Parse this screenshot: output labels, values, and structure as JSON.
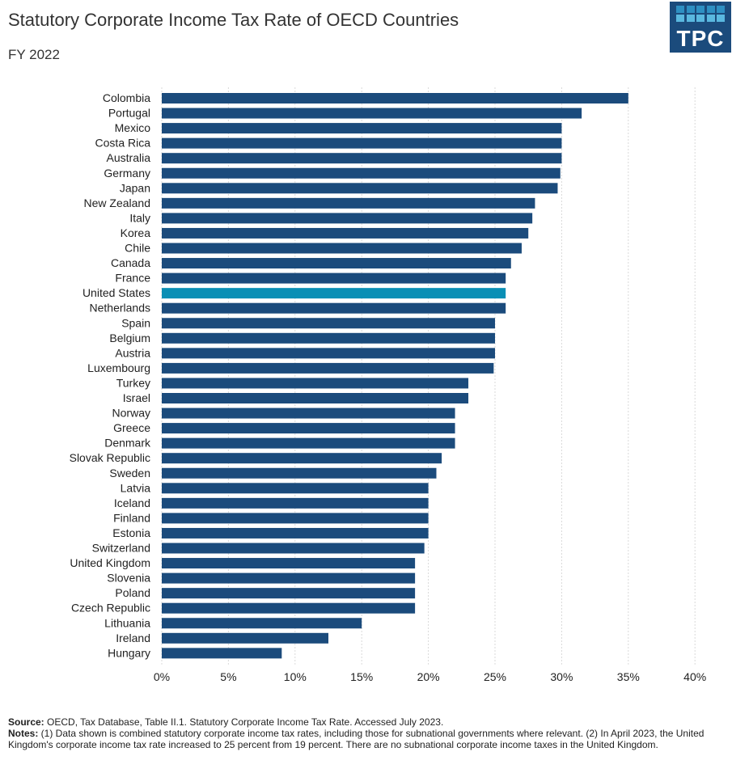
{
  "title": "Statutory Corporate Income Tax Rate of OECD Countries",
  "subtitle": "FY 2022",
  "logo": "TPC",
  "colors": {
    "bar": "#1b4b7c",
    "highlight": "#0a8fb5",
    "grid": "#d9d9d9"
  },
  "chart_data": {
    "type": "bar",
    "orientation": "horizontal",
    "title": "Statutory Corporate Income Tax Rate of OECD Countries",
    "subtitle": "FY 2022",
    "xlabel": "",
    "ylabel": "",
    "xlim": [
      0,
      40
    ],
    "x_ticks": [
      "0%",
      "5%",
      "10%",
      "15%",
      "20%",
      "25%",
      "30%",
      "35%",
      "40%"
    ],
    "grid": "vertical dotted",
    "highlight": "United States",
    "categories": [
      "Colombia",
      "Portugal",
      "Mexico",
      "Costa Rica",
      "Australia",
      "Germany",
      "Japan",
      "New Zealand",
      "Italy",
      "Korea",
      "Chile",
      "Canada",
      "France",
      "United States",
      "Netherlands",
      "Spain",
      "Belgium",
      "Austria",
      "Luxembourg",
      "Turkey",
      "Israel",
      "Norway",
      "Greece",
      "Denmark",
      "Slovak Republic",
      "Sweden",
      "Latvia",
      "Iceland",
      "Finland",
      "Estonia",
      "Switzerland",
      "United Kingdom",
      "Slovenia",
      "Poland",
      "Czech Republic",
      "Lithuania",
      "Ireland",
      "Hungary"
    ],
    "values": [
      35,
      31.5,
      30,
      30,
      30,
      29.9,
      29.7,
      28,
      27.8,
      27.5,
      27,
      26.2,
      25.8,
      25.8,
      25.8,
      25,
      25,
      25,
      24.9,
      23,
      23,
      22,
      22,
      22,
      21,
      20.6,
      20,
      20,
      20,
      20,
      19.7,
      19,
      19,
      19,
      19,
      15,
      12.5,
      9
    ]
  },
  "footer": {
    "source_label": "Source:",
    "source_text": " OECD, Tax Database, Table II.1. Statutory Corporate Income Tax Rate. Accessed July 2023.",
    "notes_label": "Notes:",
    "notes_text": " (1) Data shown is combined statutory corporate income tax rates, including  those for subnational governments where relevant. (2) In April 2023, the United Kingdom's corporate income tax rate increased to 25 percent from 19 percent. There are no subnational corporate income taxes in the United Kingdom."
  }
}
